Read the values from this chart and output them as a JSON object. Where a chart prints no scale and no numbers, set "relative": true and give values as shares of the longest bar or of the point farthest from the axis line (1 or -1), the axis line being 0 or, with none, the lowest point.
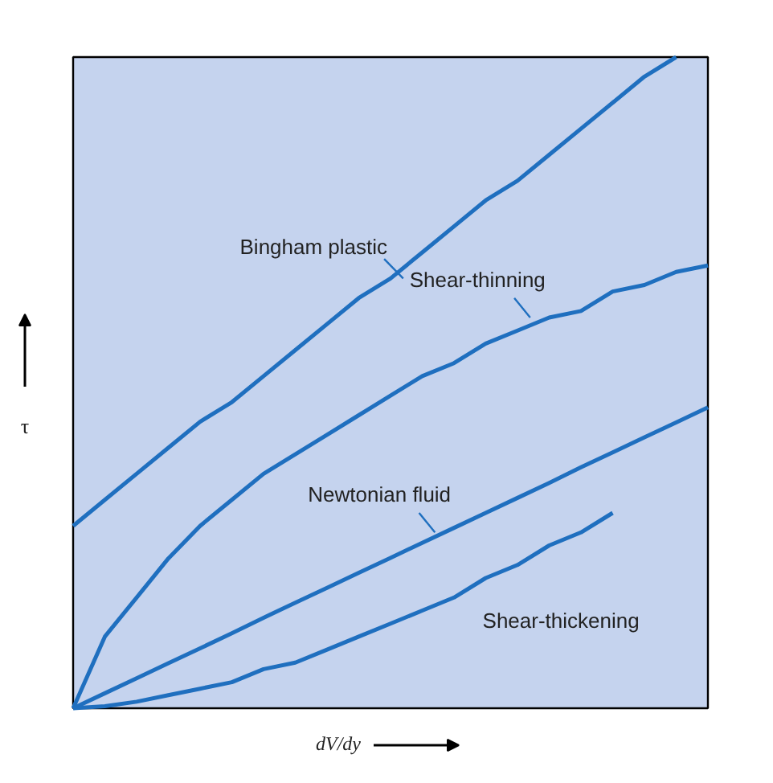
{
  "chart_data": {
    "type": "line",
    "relative": true,
    "xlabel": "dV/dy",
    "ylabel": "τ",
    "categories": [
      null,
      null,
      null,
      null,
      null,
      null,
      null,
      null,
      null,
      null,
      null,
      null,
      null,
      null,
      null,
      null,
      null,
      null,
      null,
      null,
      null
    ],
    "grid": false,
    "marker": "none",
    "line_style": "solid",
    "series": [
      {
        "name": "Bingham plastic",
        "color": "#1f6fbf",
        "values": [
          0.28,
          0.32,
          0.36,
          0.4,
          0.44,
          0.47,
          0.51,
          0.55,
          0.59,
          0.63,
          0.66,
          0.7,
          0.74,
          0.78,
          0.81,
          0.85,
          0.89,
          0.93,
          0.97,
          1.0,
          null
        ]
      },
      {
        "name": "Shear-thinning",
        "color": "#1f6fbf",
        "values": [
          0,
          0.11,
          0.17,
          0.23,
          0.28,
          0.32,
          0.36,
          0.39,
          0.42,
          0.45,
          0.48,
          0.51,
          0.53,
          0.56,
          0.58,
          0.6,
          0.61,
          0.64,
          0.65,
          0.67,
          0.68
        ]
      },
      {
        "name": "Newtonian fluid",
        "color": "#1f6fbf",
        "values": [
          0,
          0.023,
          0.046,
          0.069,
          0.092,
          0.115,
          0.139,
          0.162,
          0.185,
          0.208,
          0.231,
          0.254,
          0.277,
          0.3,
          0.323,
          0.346,
          0.37,
          0.393,
          0.416,
          0.439,
          0.462
        ]
      },
      {
        "name": "Shear-thickening",
        "color": "#1f6fbf",
        "values": [
          0,
          0.003,
          0.01,
          0.02,
          0.03,
          0.04,
          0.06,
          0.07,
          0.09,
          0.11,
          0.13,
          0.15,
          0.17,
          0.2,
          0.22,
          0.25,
          0.27,
          0.3,
          null,
          null,
          null
        ]
      }
    ]
  }
}
